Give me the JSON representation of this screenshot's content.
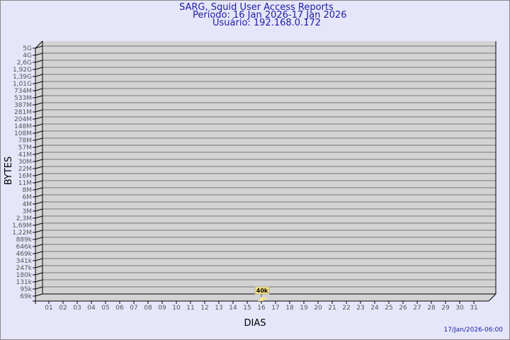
{
  "header": {
    "title": "SARG, Squid User Access Reports",
    "period": "Período: 16 Jan 2026-17 Jan 2026",
    "user": "Usuário: 192.168.0.172"
  },
  "footer": {
    "timestamp": "17/Jan/2026-06:00"
  },
  "colors": {
    "background": "#e6e6fa",
    "plot": "#d3d3d3",
    "bar": "#ffe680",
    "title": "#1c1ca8"
  },
  "chart_data": {
    "type": "bar",
    "xlabel": "DIAS",
    "ylabel": "BYTES",
    "grid": true,
    "categories": [
      "01",
      "02",
      "03",
      "04",
      "05",
      "06",
      "07",
      "08",
      "09",
      "10",
      "11",
      "12",
      "13",
      "14",
      "15",
      "16",
      "17",
      "18",
      "19",
      "20",
      "21",
      "22",
      "23",
      "24",
      "25",
      "26",
      "27",
      "28",
      "29",
      "30",
      "31"
    ],
    "y_tick_labels": [
      "5G",
      "4G",
      "2,6G",
      "1,92G",
      "1,39G",
      "1,01G",
      "734M",
      "533M",
      "387M",
      "281M",
      "204M",
      "148M",
      "108M",
      "78M",
      "57M",
      "41M",
      "30M",
      "22M",
      "16M",
      "11M",
      "8M",
      "6M",
      "4M",
      "3M",
      "2,3M",
      "1,69M",
      "1,22M",
      "889k",
      "646k",
      "469k",
      "341k",
      "247k",
      "180k",
      "131k",
      "95k",
      "69k"
    ],
    "series": [
      {
        "points": [
          {
            "x": "16",
            "value": 40000,
            "label": "40k"
          }
        ]
      }
    ]
  }
}
